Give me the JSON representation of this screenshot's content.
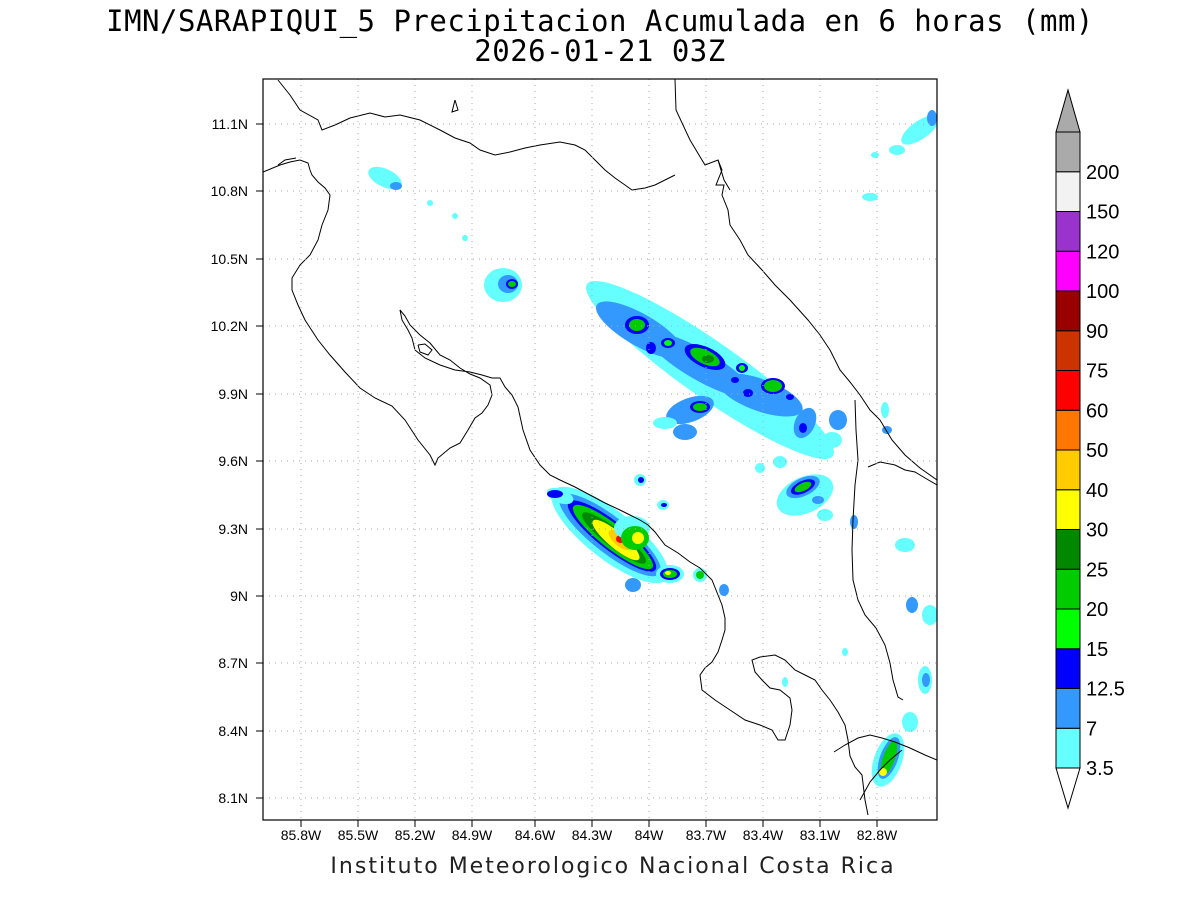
{
  "title": {
    "line1": "IMN/SARAPIQUI_5 Precipitacion Acumulada en 6 horas (mm)",
    "line2": "2026-01-21 03Z"
  },
  "footer": "Instituto Meteorologico Nacional Costa Rica",
  "map": {
    "lat_labels": [
      "11.1N",
      "10.8N",
      "10.5N",
      "10.2N",
      "9.9N",
      "9.6N",
      "9.3N",
      "9N",
      "8.7N",
      "8.4N",
      "8.1N"
    ],
    "lon_labels": [
      "85.8W",
      "85.5W",
      "85.2W",
      "84.9W",
      "84.6W",
      "84.3W",
      "84W",
      "83.7W",
      "83.4W",
      "83.1W",
      "82.8W"
    ]
  },
  "colorbar": {
    "labels": [
      "3.5",
      "7",
      "12.5",
      "15",
      "20",
      "25",
      "30",
      "40",
      "50",
      "60",
      "75",
      "90",
      "100",
      "120",
      "150",
      "200"
    ],
    "colors": [
      "#66ffff",
      "#3399ff",
      "#0000ff",
      "#00ff00",
      "#00cc00",
      "#008800",
      "#ffff00",
      "#ffcc00",
      "#ff7700",
      "#ff0000",
      "#cc3300",
      "#990000",
      "#ff00ff",
      "#9933cc",
      "#f2f2f2",
      "#aaaaaa"
    ]
  }
}
